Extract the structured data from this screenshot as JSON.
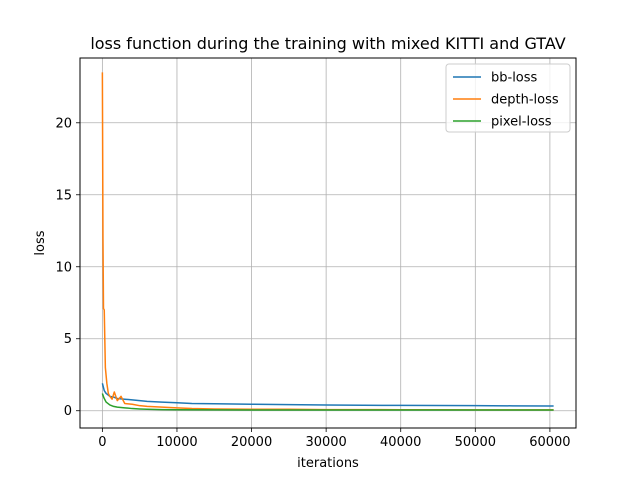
{
  "chart_data": {
    "type": "line",
    "title": "loss function during the training with mixed KITTI and GTAV",
    "xlabel": "iterations",
    "ylabel": "loss",
    "xlim": [
      -3000,
      63500
    ],
    "ylim": [
      -1.2,
      24.5
    ],
    "xticks": [
      0,
      10000,
      20000,
      30000,
      40000,
      50000,
      60000
    ],
    "yticks": [
      0,
      5,
      10,
      15,
      20
    ],
    "grid": true,
    "legend_position": "top-right",
    "series": [
      {
        "name": "bb-loss",
        "color": "#1f77b4",
        "x": [
          0,
          250,
          500,
          1000,
          1500,
          2000,
          3000,
          4000,
          5000,
          6000,
          8000,
          10000,
          12000,
          15000,
          20000,
          25000,
          30000,
          35000,
          40000,
          45000,
          50000,
          55000,
          60000,
          60500
        ],
        "y": [
          1.9,
          1.4,
          1.2,
          1.0,
          0.95,
          0.85,
          0.8,
          0.75,
          0.7,
          0.65,
          0.6,
          0.55,
          0.5,
          0.48,
          0.45,
          0.42,
          0.4,
          0.38,
          0.37,
          0.36,
          0.35,
          0.34,
          0.33,
          0.33
        ]
      },
      {
        "name": "depth-loss",
        "color": "#ff7f0e",
        "x": [
          0,
          80,
          150,
          250,
          400,
          600,
          800,
          1000,
          1300,
          1600,
          2000,
          2500,
          3000,
          4000,
          5000,
          6000,
          8000,
          10000,
          12000,
          15000,
          20000,
          25000,
          30000,
          35000,
          40000,
          45000,
          50000,
          55000,
          60000,
          60500
        ],
        "y": [
          23.5,
          12.0,
          7.1,
          7.0,
          3.0,
          1.9,
          1.2,
          1.0,
          0.8,
          1.3,
          0.7,
          1.0,
          0.5,
          0.45,
          0.35,
          0.3,
          0.25,
          0.2,
          0.15,
          0.12,
          0.1,
          0.1,
          0.08,
          0.08,
          0.07,
          0.07,
          0.06,
          0.06,
          0.06,
          0.06
        ]
      },
      {
        "name": "pixel-loss",
        "color": "#2ca02c",
        "x": [
          0,
          200,
          500,
          1000,
          1500,
          2000,
          3000,
          4000,
          5000,
          6000,
          8000,
          10000,
          15000,
          20000,
          25000,
          30000,
          35000,
          40000,
          45000,
          50000,
          55000,
          60000,
          60500
        ],
        "y": [
          1.2,
          0.9,
          0.6,
          0.4,
          0.3,
          0.25,
          0.2,
          0.15,
          0.12,
          0.1,
          0.08,
          0.07,
          0.06,
          0.05,
          0.05,
          0.05,
          0.05,
          0.05,
          0.05,
          0.05,
          0.05,
          0.05,
          0.05
        ]
      }
    ]
  }
}
